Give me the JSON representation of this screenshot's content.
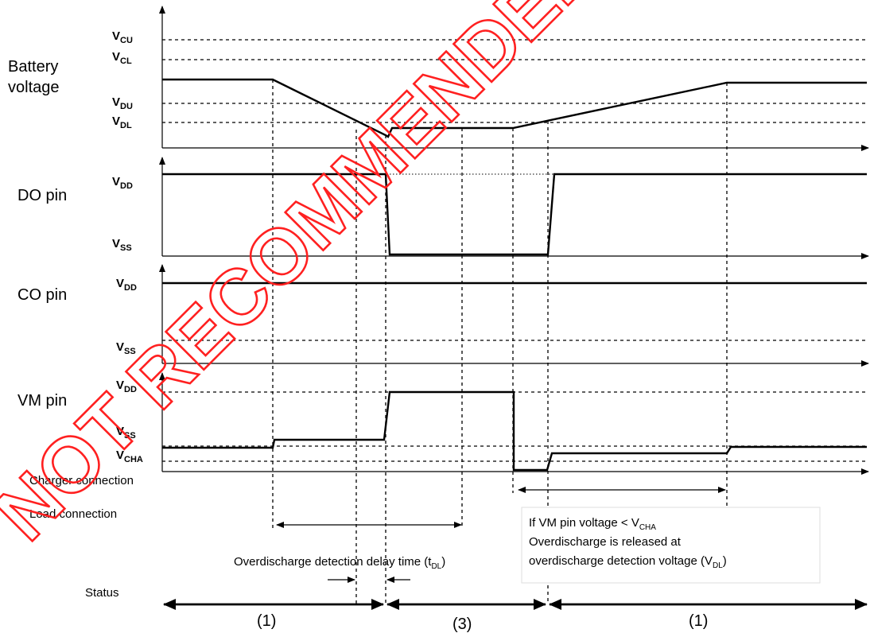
{
  "waveforms": [
    {
      "name": "Battery voltage",
      "line1": "Battery",
      "line2": "voltage",
      "levels": [
        {
          "sym": "V",
          "sub": "CU"
        },
        {
          "sym": "V",
          "sub": "CL"
        },
        {
          "sym": "V",
          "sub": "DU"
        },
        {
          "sym": "V",
          "sub": "DL"
        }
      ]
    },
    {
      "name": "DO pin",
      "line1": "DO pin",
      "levels": [
        {
          "sym": "V",
          "sub": "DD"
        },
        {
          "sym": "V",
          "sub": "SS"
        }
      ]
    },
    {
      "name": "CO pin",
      "line1": "CO pin",
      "levels": [
        {
          "sym": "V",
          "sub": "DD"
        },
        {
          "sym": "V",
          "sub": "SS"
        }
      ]
    },
    {
      "name": "VM pin",
      "line1": "VM pin",
      "levels": [
        {
          "sym": "V",
          "sub": "DD"
        },
        {
          "sym": "V",
          "sub": "SS"
        },
        {
          "sym": "V",
          "sub": "CHA"
        }
      ]
    }
  ],
  "events": {
    "charger_connection": "Charger connection",
    "load_connection": "Load connection"
  },
  "delay_label": {
    "text": "Overdischarge detection delay time (t",
    "sub": "DL",
    "close": ")"
  },
  "release_note": {
    "line1_text": "If VM pin voltage < V",
    "line1_sub": "CHA",
    "line2": "Overdischarge is released at",
    "line3_text": "overdischarge detection voltage (V",
    "line3_sub": "DL",
    "line3_close": ")"
  },
  "status": {
    "label": "Status",
    "segments": [
      "(1)",
      "(3)",
      "(1)"
    ]
  },
  "watermark": "NOT RECOMMENDED"
}
